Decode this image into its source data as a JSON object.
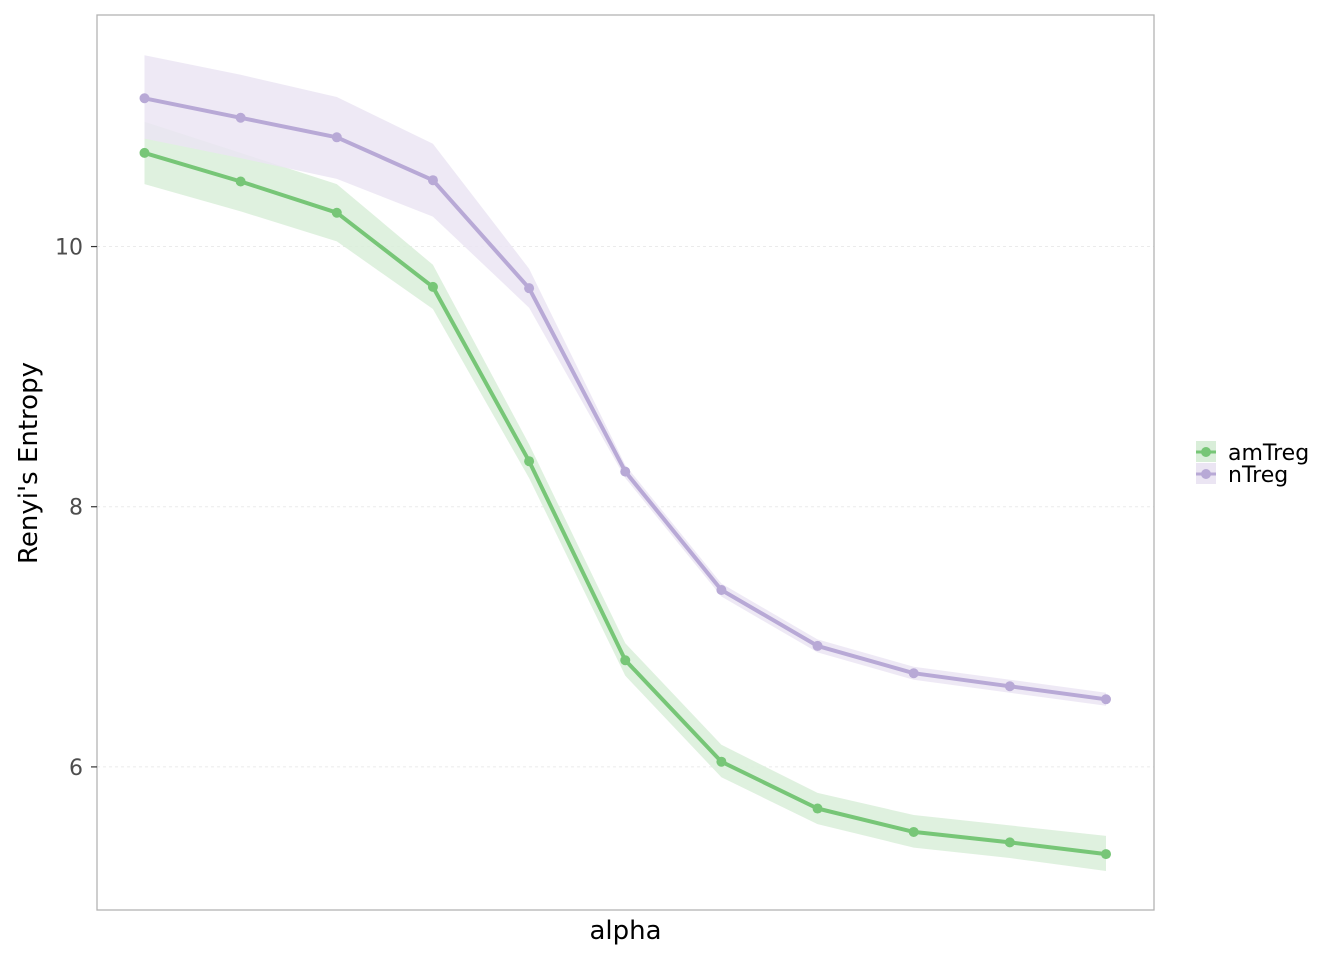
{
  "chart_data": {
    "type": "line",
    "xlabel": "alpha",
    "ylabel": "Renyi's Entropy",
    "ylim": [
      4.9,
      11.78
    ],
    "yticks": [
      6,
      8,
      10
    ],
    "x": [
      1,
      2,
      3,
      4,
      5,
      6,
      7,
      8,
      9,
      10,
      11
    ],
    "x_tick_labels_visible": false,
    "grid": true,
    "legend_position": "right",
    "series": [
      {
        "name": "amTreg",
        "color": "#77c677",
        "band_color": "#d9eed9",
        "values": [
          10.72,
          10.5,
          10.26,
          9.69,
          8.35,
          6.82,
          6.04,
          5.68,
          5.5,
          5.42,
          5.33
        ],
        "lower": [
          10.48,
          10.27,
          10.04,
          9.52,
          8.22,
          6.7,
          5.92,
          5.56,
          5.38,
          5.3,
          5.2
        ],
        "upper": [
          10.96,
          10.72,
          10.48,
          9.86,
          8.48,
          6.95,
          6.17,
          5.8,
          5.63,
          5.55,
          5.47
        ]
      },
      {
        "name": "nTreg",
        "color": "#b8a9d6",
        "band_color": "#ebe5f3",
        "values": [
          11.14,
          10.99,
          10.84,
          10.51,
          9.68,
          8.27,
          7.36,
          6.93,
          6.72,
          6.62,
          6.52
        ],
        "lower": [
          10.83,
          10.68,
          10.52,
          10.23,
          9.53,
          8.22,
          7.31,
          6.88,
          6.67,
          6.57,
          6.47
        ],
        "upper": [
          11.47,
          11.32,
          11.15,
          10.79,
          9.83,
          8.32,
          7.41,
          6.98,
          6.77,
          6.67,
          6.57
        ]
      }
    ]
  }
}
